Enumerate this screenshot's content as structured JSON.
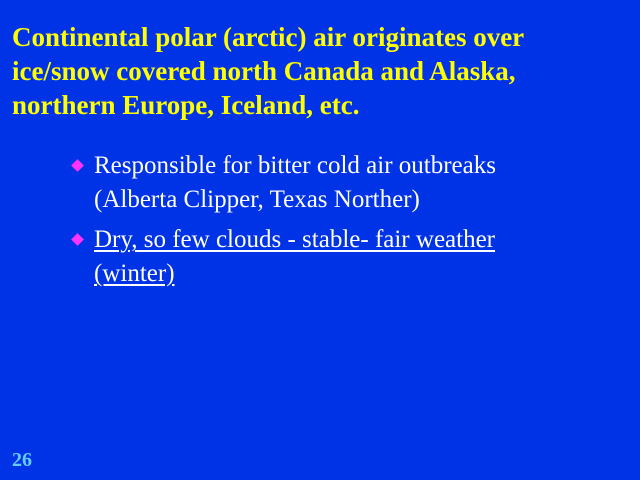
{
  "slide": {
    "background_color": "#0033e6",
    "title_color": "#ffff00",
    "bullet_color": "#ff33ff",
    "page_number_color": "#66ccff",
    "title_lines": [
      "Continental polar (arctic) air originates over",
      "ice/snow covered north Canada and Alaska,",
      "northern Europe, Iceland, etc."
    ],
    "bullets": [
      {
        "lines": [
          "Responsible for bitter cold air outbreaks",
          "(Alberta Clipper, Texas Norther)"
        ],
        "underlined": false
      },
      {
        "lines": [
          "Dry, so few clouds - stable- fair weather",
          "(winter)"
        ],
        "underlined": true
      }
    ],
    "page_number": "26"
  }
}
